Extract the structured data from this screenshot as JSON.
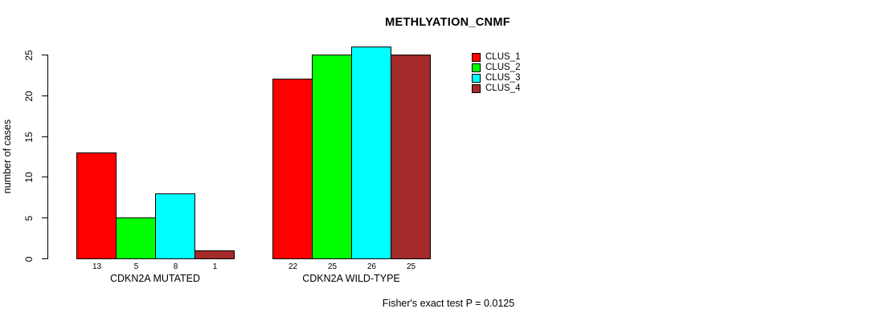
{
  "chart_data": {
    "type": "bar",
    "title": "METHLYATION_CNMF",
    "ylabel": "number of cases",
    "xlabel": "",
    "categories": [
      "CDKN2A MUTATED",
      "CDKN2A WILD-TYPE"
    ],
    "series": [
      {
        "name": "CLUS_1",
        "color": "#FF0000",
        "values": [
          13,
          22
        ]
      },
      {
        "name": "CLUS_2",
        "color": "#00FF00",
        "values": [
          5,
          25
        ]
      },
      {
        "name": "CLUS_3",
        "color": "#00FFFF",
        "values": [
          8,
          26
        ]
      },
      {
        "name": "CLUS_4",
        "color": "#A52A2A",
        "values": [
          1,
          25
        ]
      }
    ],
    "yticks": [
      0,
      5,
      10,
      15,
      20,
      25
    ],
    "ylim": [
      0,
      26
    ],
    "grid": false,
    "legend_position": "top-right",
    "bar_value_labels": true,
    "annotation": "Fisher's exact test P = 0.0125"
  }
}
